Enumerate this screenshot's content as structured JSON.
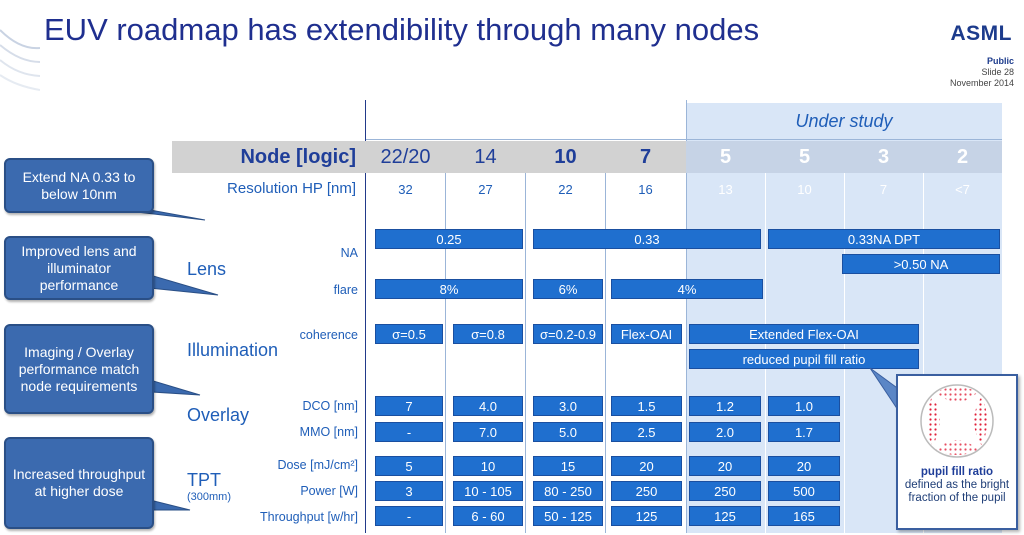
{
  "title": "EUV roadmap has extendibility through many nodes",
  "logo": "ASML",
  "meta": {
    "classification": "Public",
    "slide": "Slide 28",
    "date": "November 2014"
  },
  "under_study": "Under study",
  "node_label": "Node [logic]",
  "nodes": [
    "22/20",
    "14",
    "10",
    "7",
    "5",
    "5",
    "3",
    "2"
  ],
  "resolution_label": "Resolution HP [nm]",
  "resolution": [
    "32",
    "27",
    "22",
    "16",
    "13",
    "10",
    "7",
    "<7"
  ],
  "sections": {
    "lens": "Lens",
    "illumination": "Illumination",
    "overlay": "Overlay",
    "tpt": "TPT",
    "tpt_sub": "(300mm)"
  },
  "sublabels": {
    "na": "NA",
    "flare": "flare",
    "coherence": "coherence",
    "dco": "DCO [nm]",
    "mmo": "MMO [nm]",
    "dose": "Dose [mJ/cm²]",
    "power": "Power [W]",
    "throughput": "Throughput [w/hr]"
  },
  "lens": {
    "na": [
      "0.25",
      "0.33",
      "0.33NA DPT",
      ">0.50 NA"
    ],
    "flare": [
      "8%",
      "6%",
      "4%"
    ]
  },
  "illumination": {
    "coherence": [
      "σ=0.5",
      "σ=0.8",
      "σ=0.2-0.9",
      "Flex-OAI",
      "Extended Flex-OAI",
      "reduced pupil fill ratio"
    ]
  },
  "overlay": {
    "dco": [
      "7",
      "4.0",
      "3.0",
      "1.5",
      "1.2",
      "1.0"
    ],
    "mmo": [
      "-",
      "7.0",
      "5.0",
      "2.5",
      "2.0",
      "1.7"
    ]
  },
  "tpt": {
    "dose": [
      "5",
      "10",
      "15",
      "20",
      "20",
      "20"
    ],
    "power": [
      "3",
      "10 - 105",
      "80 - 250",
      "250",
      "250",
      "500"
    ],
    "throughput": [
      "-",
      "6 - 60",
      "50 - 125",
      "125",
      "125",
      "165"
    ]
  },
  "callouts": [
    "Extend NA 0.33  to below 10nm",
    "Improved lens and illuminator performance",
    "Imaging / Overlay performance match node requirements",
    "Increased throughput at higher dose"
  ],
  "pupil": {
    "title": "pupil fill ratio",
    "desc": "defined as the bright fraction of the pupil"
  },
  "colors": {
    "title": "#1f2f8f",
    "bar": "#1f6fcf",
    "study_bg": "#d9e6f7",
    "callout": "#3b6aaf"
  }
}
